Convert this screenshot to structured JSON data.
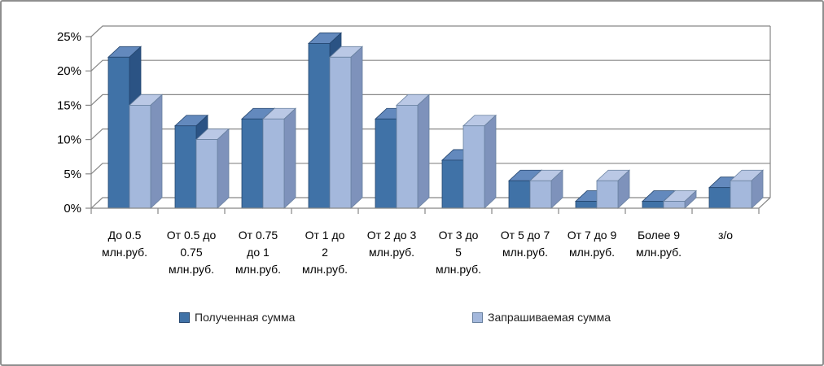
{
  "frame": {
    "background": "#ffffff",
    "border_color": "#8f8f8f"
  },
  "chart_data": {
    "type": "bar",
    "style": "3d-clustered-column",
    "title": "",
    "categories": [
      "До 0.5\nмлн.руб.",
      "От 0.5 до\n0.75\nмлн.руб.",
      "От 0.75\nдо 1\nмлн.руб.",
      "От 1 до\n2\nмлн.руб.",
      "От 2 до 3\nмлн.руб.",
      "От 3 до\n5\nмлн.руб.",
      "От 5 до 7\nмлн.руб.",
      "От 7 до 9\nмлн.руб.",
      "Более 9\nмлн.руб.",
      "з/о"
    ],
    "series": [
      {
        "name": "Полученная сумма",
        "values": [
          22,
          12,
          13,
          24,
          13,
          7,
          4,
          1,
          1,
          3
        ],
        "colors": {
          "front": "#4072A7",
          "top": "#6389BD",
          "side": "#2B5384",
          "edge": "#24466F"
        }
      },
      {
        "name": "Запрашиваемая сумма",
        "values": [
          15,
          10,
          13,
          22,
          15,
          12,
          4,
          4,
          1,
          4
        ],
        "colors": {
          "front": "#A4B8DC",
          "top": "#BAC8E5",
          "side": "#7E92BB",
          "edge": "#68809F"
        }
      }
    ],
    "y_axis": {
      "min": 0,
      "max": 25,
      "step": 5,
      "tick_labels": [
        "0%",
        "5%",
        "10%",
        "15%",
        "20%",
        "25%"
      ]
    },
    "grid": true,
    "gridline_color": "#878787",
    "legend_position": "bottom"
  }
}
